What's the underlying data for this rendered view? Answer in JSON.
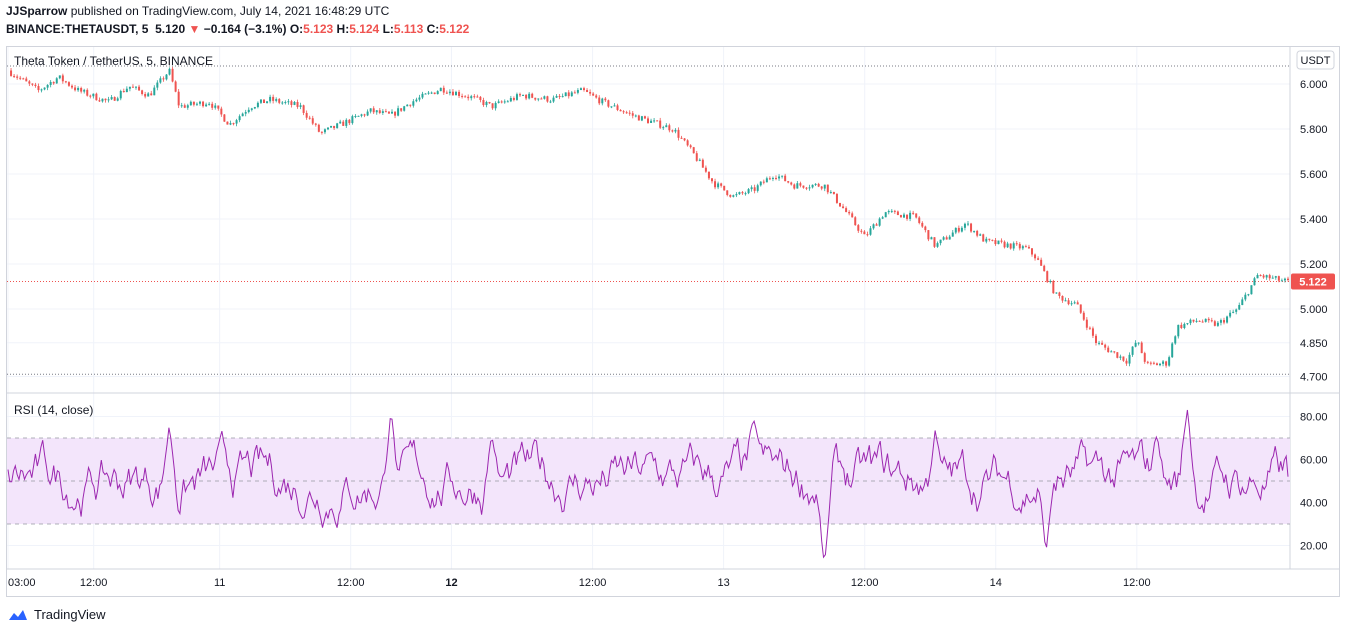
{
  "header": {
    "author": "JJSparrow",
    "published_text": "published on TradingView.com, July 14, 2021 16:48:29 UTC",
    "symbol": "BINANCE:THETAUSDT, 5",
    "last_price": "5.120",
    "change_arrow": "▼",
    "change": "−0.164 (−3.1%)",
    "o_label": "O:",
    "o_value": "5.123",
    "h_label": "H:",
    "h_value": "5.124",
    "l_label": "L:",
    "l_value": "5.113",
    "c_label": "C:",
    "c_value": "5.122"
  },
  "price_pane": {
    "title": "Theta Token / TetherUS, 5, BINANCE",
    "currency_badge": "USDT",
    "current_price_badge": "5.122",
    "colors": {
      "up": "#26a69a",
      "down": "#ef5350",
      "current_line": "#ef5350",
      "range_line": "#787b86"
    }
  },
  "rsi_pane": {
    "title": "RSI (14, close)",
    "colors": {
      "line": "#9c27b0",
      "band": "#f3e5fb"
    }
  },
  "footer": {
    "brand": "TradingView"
  },
  "chart_data": [
    {
      "type": "candlestick",
      "title": "Theta Token / TetherUS, 5, BINANCE",
      "ylabel": "USDT",
      "ylim": [
        4.64,
        6.16
      ],
      "yticks": [
        "6.000",
        "5.800",
        "5.600",
        "5.400",
        "5.200",
        "5.000",
        "4.850",
        "4.700"
      ],
      "xticks": [
        "03:00",
        "12:00",
        "11",
        "12:00",
        "12",
        "12:00",
        "13",
        "12:00",
        "14",
        "12:00"
      ],
      "x_bold_tick": "12",
      "session_high": 6.08,
      "session_low": 4.71,
      "current_price": 5.122,
      "price_path": [
        [
          0,
          6.06
        ],
        [
          3,
          5.97
        ],
        [
          5,
          6.03
        ],
        [
          7,
          5.97
        ],
        [
          10,
          5.92
        ],
        [
          12,
          5.99
        ],
        [
          14,
          5.95
        ],
        [
          16,
          6.06
        ],
        [
          17,
          5.9
        ],
        [
          20,
          5.92
        ],
        [
          22,
          5.82
        ],
        [
          24,
          5.9
        ],
        [
          26,
          5.93
        ],
        [
          29,
          5.9
        ],
        [
          31,
          5.78
        ],
        [
          33,
          5.82
        ],
        [
          36,
          5.88
        ],
        [
          38,
          5.86
        ],
        [
          40,
          5.92
        ],
        [
          43,
          5.98
        ],
        [
          46,
          5.94
        ],
        [
          48,
          5.9
        ],
        [
          51,
          5.95
        ],
        [
          54,
          5.93
        ],
        [
          57,
          5.97
        ],
        [
          59,
          5.92
        ],
        [
          62,
          5.86
        ],
        [
          66,
          5.8
        ],
        [
          68,
          5.69
        ],
        [
          70,
          5.56
        ],
        [
          72,
          5.5
        ],
        [
          74,
          5.53
        ],
        [
          76,
          5.6
        ],
        [
          78,
          5.55
        ],
        [
          81,
          5.55
        ],
        [
          83,
          5.44
        ],
        [
          85,
          5.32
        ],
        [
          87,
          5.43
        ],
        [
          90,
          5.41
        ],
        [
          92,
          5.28
        ],
        [
          95,
          5.38
        ],
        [
          97,
          5.3
        ],
        [
          101,
          5.27
        ],
        [
          102,
          5.23
        ],
        [
          104,
          5.06
        ],
        [
          106,
          5.02
        ],
        [
          108,
          4.85
        ],
        [
          111,
          4.77
        ],
        [
          112,
          4.86
        ],
        [
          113,
          4.75
        ],
        [
          115,
          4.76
        ],
        [
          116,
          4.92
        ],
        [
          118,
          4.95
        ],
        [
          120,
          4.93
        ],
        [
          122,
          5.0
        ],
        [
          124,
          5.15
        ],
        [
          125,
          5.14
        ],
        [
          126,
          5.13
        ],
        [
          127,
          5.12
        ]
      ]
    },
    {
      "type": "line",
      "title": "RSI (14, close)",
      "ylim": [
        10,
        90
      ],
      "yticks": [
        "80.00",
        "60.00",
        "40.00",
        "20.00"
      ],
      "band": [
        30,
        70
      ],
      "midline": 50,
      "last_value": 52,
      "peaks": [
        [
          16,
          76
        ],
        [
          38,
          84
        ],
        [
          48,
          72
        ],
        [
          74,
          78
        ],
        [
          81,
          10
        ],
        [
          92,
          74
        ],
        [
          103,
          17
        ],
        [
          114,
          72
        ],
        [
          117,
          84
        ]
      ]
    }
  ]
}
